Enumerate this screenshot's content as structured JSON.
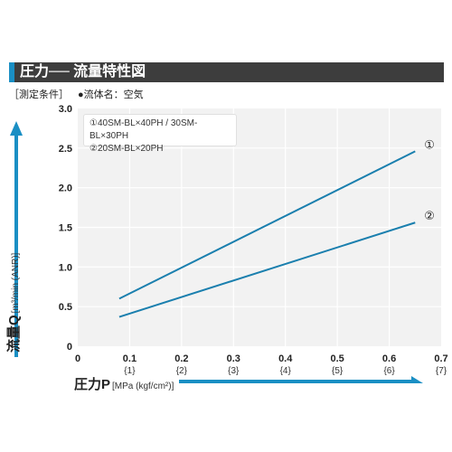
{
  "header": {
    "title": "圧力── 流量特性図"
  },
  "conditions": {
    "label": "［測定条件］",
    "fluid": "●流体名：空気"
  },
  "legend": [
    "①40SM-BL×40PH / 30SM-BL×30PH",
    "②20SM-BL×20PH"
  ],
  "colors": {
    "accent": "#1a8fc4",
    "header_bg": "#3d3d3d",
    "line": "#1a7fae",
    "plot_bg": "#f2f2f2",
    "grid": "#ffffff"
  },
  "chart_data": {
    "type": "line",
    "title": "圧力── 流量特性図",
    "ylabel": {
      "main": "流量Q",
      "unit": "[m³/min (ANR)]"
    },
    "xlabel": {
      "main": "圧力P",
      "unit": "[MPa (kgf/cm²)]"
    },
    "xlim": [
      0,
      0.7
    ],
    "ylim": [
      0,
      3.0
    ],
    "x_ticks": [
      "0",
      "0.1",
      "0.2",
      "0.3",
      "0.4",
      "0.5",
      "0.6",
      "0.7"
    ],
    "x_ticks_secondary": [
      "",
      "{1}",
      "{2}",
      "{3}",
      "{4}",
      "{5}",
      "{6}",
      "{7}"
    ],
    "y_ticks": [
      "0",
      "0.5",
      "1.0",
      "1.5",
      "2.0",
      "2.5",
      "3.0"
    ],
    "grid": true,
    "series": [
      {
        "name": "①",
        "x": [
          0.08,
          0.65
        ],
        "y": [
          0.6,
          2.46
        ]
      },
      {
        "name": "②",
        "x": [
          0.08,
          0.65
        ],
        "y": [
          0.37,
          1.56
        ]
      }
    ]
  }
}
